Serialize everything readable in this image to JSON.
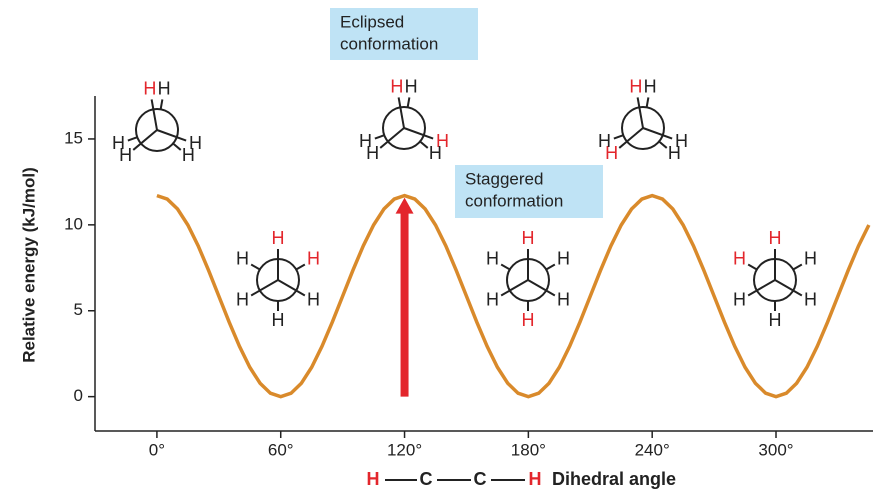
{
  "chart_data": {
    "type": "line",
    "y_label": "Relative energy (kJ/mol)",
    "x_label": "Dihedral angle",
    "x_label_formula": [
      "H",
      "C",
      "C",
      "H"
    ],
    "x_label_formula_colors": [
      "#e3262c",
      "#222222",
      "#222222",
      "#e3262c"
    ],
    "x": [
      0,
      5,
      10,
      15,
      20,
      25,
      30,
      35,
      40,
      45,
      50,
      55,
      60,
      65,
      70,
      75,
      80,
      85,
      90,
      95,
      100,
      105,
      110,
      115,
      120,
      125,
      130,
      135,
      140,
      145,
      150,
      155,
      160,
      165,
      170,
      175,
      180,
      185,
      190,
      195,
      200,
      205,
      210,
      215,
      220,
      225,
      230,
      235,
      240,
      245,
      250,
      255,
      260,
      265,
      270,
      275,
      280,
      285,
      290,
      295,
      300,
      305,
      310,
      315,
      320,
      325,
      330,
      335,
      340,
      345
    ],
    "values": [
      11.7,
      11.5,
      10.92,
      9.99,
      8.78,
      7.36,
      5.85,
      4.34,
      2.93,
      1.71,
      0.78,
      0.2,
      0,
      0.2,
      0.78,
      1.71,
      2.93,
      4.34,
      5.85,
      7.36,
      8.78,
      9.99,
      10.92,
      11.5,
      11.7,
      11.5,
      10.92,
      9.99,
      8.78,
      7.36,
      5.85,
      4.34,
      2.93,
      1.71,
      0.78,
      0.2,
      0,
      0.2,
      0.78,
      1.71,
      2.93,
      4.34,
      5.85,
      7.36,
      8.78,
      9.99,
      10.92,
      11.5,
      11.7,
      11.5,
      10.92,
      9.99,
      8.78,
      7.36,
      5.85,
      4.34,
      2.93,
      1.71,
      0.78,
      0.2,
      0,
      0.2,
      0.78,
      1.71,
      2.93,
      4.34,
      5.85,
      7.36,
      8.78,
      9.99
    ],
    "color": "#d98a2b",
    "xlim": [
      -30,
      347
    ],
    "ylim": [
      -2,
      17.5
    ],
    "xticks": [
      {
        "value": 0,
        "label": "0°"
      },
      {
        "value": 60,
        "label": "60°"
      },
      {
        "value": 120,
        "label": "120°"
      },
      {
        "value": 180,
        "label": "180°"
      },
      {
        "value": 240,
        "label": "240°"
      },
      {
        "value": 300,
        "label": "300°"
      }
    ],
    "yticks": [
      0,
      5,
      10,
      15
    ],
    "arrow": {
      "x": 120,
      "from": 0,
      "to": 11.7,
      "color": "#e3262c"
    },
    "annotations": [
      {
        "lines": [
          "Eclipsed",
          "conformation"
        ]
      },
      {
        "lines": [
          "Staggered",
          "conformation"
        ]
      }
    ],
    "annotation_color": "#bfe3f5",
    "projections": [
      {
        "labels": [
          "H",
          "H",
          "H",
          "H",
          "H",
          "H"
        ],
        "colors": [
          "#e3262c",
          "#222222",
          "#222222",
          "#222222",
          "#222222",
          "#222222"
        ]
      },
      {
        "labels": [
          "H",
          "H",
          "H",
          "H",
          "H",
          "H"
        ],
        "colors": [
          "#e3262c",
          "#222222",
          "#222222",
          "#222222",
          "#e3262c",
          "#222222"
        ]
      },
      {
        "labels": [
          "H",
          "H",
          "H",
          "H",
          "H",
          "H"
        ],
        "colors": [
          "#e3262c",
          "#222222",
          "#e3262c",
          "#222222",
          "#222222",
          "#222222"
        ]
      },
      {
        "labels": [
          "H",
          "H",
          "H",
          "H",
          "H",
          "H"
        ],
        "colors": [
          "#e3262c",
          "#e3262c",
          "#222222",
          "#222222",
          "#222222",
          "#222222"
        ]
      },
      {
        "labels": [
          "H",
          "H",
          "H",
          "H",
          "H",
          "H"
        ],
        "colors": [
          "#e3262c",
          "#222222",
          "#222222",
          "#e3262c",
          "#222222",
          "#222222"
        ]
      },
      {
        "labels": [
          "H",
          "H",
          "H",
          "H",
          "H",
          "H"
        ],
        "colors": [
          "#e3262c",
          "#222222",
          "#222222",
          "#222222",
          "#222222",
          "#e3262c"
        ]
      }
    ]
  }
}
